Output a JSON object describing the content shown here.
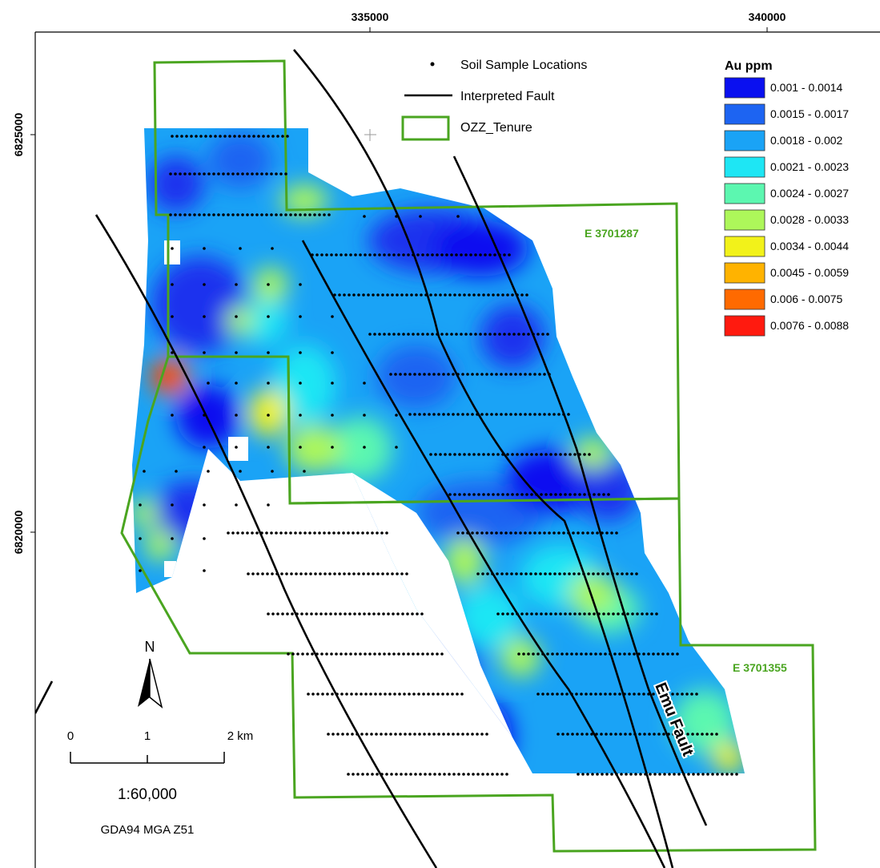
{
  "axes": {
    "easting_labels": [
      "335000",
      "340000"
    ],
    "northing_labels": [
      "6825000",
      "6820000"
    ]
  },
  "legend": {
    "soil_samples_label": "Soil Sample Locations",
    "fault_label": "Interpreted Fault",
    "tenure_label": "OZZ_Tenure",
    "tenure_color": "#4aa520",
    "fault_color": "#000000"
  },
  "au_legend": {
    "title": "Au ppm",
    "classes": [
      {
        "label": "0.001 - 0.0014",
        "color": "#0a10f0"
      },
      {
        "label": "0.0015 - 0.0017",
        "color": "#1d64f2"
      },
      {
        "label": "0.0018 - 0.002",
        "color": "#1aa3f6"
      },
      {
        "label": "0.0021 - 0.0023",
        "color": "#1ee6f4"
      },
      {
        "label": "0.0024 - 0.0027",
        "color": "#5cf7b0"
      },
      {
        "label": "0.0028 - 0.0033",
        "color": "#adf75a"
      },
      {
        "label": "0.0034 - 0.0044",
        "color": "#f2f21a"
      },
      {
        "label": "0.0045 - 0.0059",
        "color": "#ffb300"
      },
      {
        "label": "0.006 - 0.0075",
        "color": "#ff6a00"
      },
      {
        "label": "0.0076 - 0.0088",
        "color": "#ff1a0f"
      }
    ]
  },
  "tenements": [
    "E 3701287",
    "E 3701355"
  ],
  "fault_name": "Emu Fault",
  "north_arrow": "N",
  "scale_bar": {
    "ticks": [
      "0",
      "1",
      "2 km"
    ],
    "ratio": "1:60,000"
  },
  "projection": "GDA94 MGA Z51"
}
